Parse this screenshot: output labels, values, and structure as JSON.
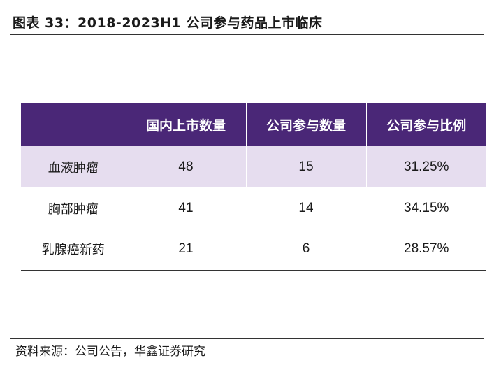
{
  "title": "图表 33：2018-2023H1 公司参与药品上市临床",
  "table": {
    "headers": [
      "",
      "国内上市数量",
      "公司参与数量",
      "公司参与比例"
    ],
    "rows": [
      [
        "血液肿瘤",
        "48",
        "15",
        "31.25%"
      ],
      [
        "胸部肿瘤",
        "41",
        "14",
        "34.15%"
      ],
      [
        "乳腺癌新药",
        "21",
        "6",
        "28.57%"
      ]
    ]
  },
  "source": "资料来源：公司公告，华鑫证券研究",
  "colors": {
    "header_bg": "#4a2777",
    "header_text": "#ffffff",
    "band_bg": "#e6ddef"
  }
}
